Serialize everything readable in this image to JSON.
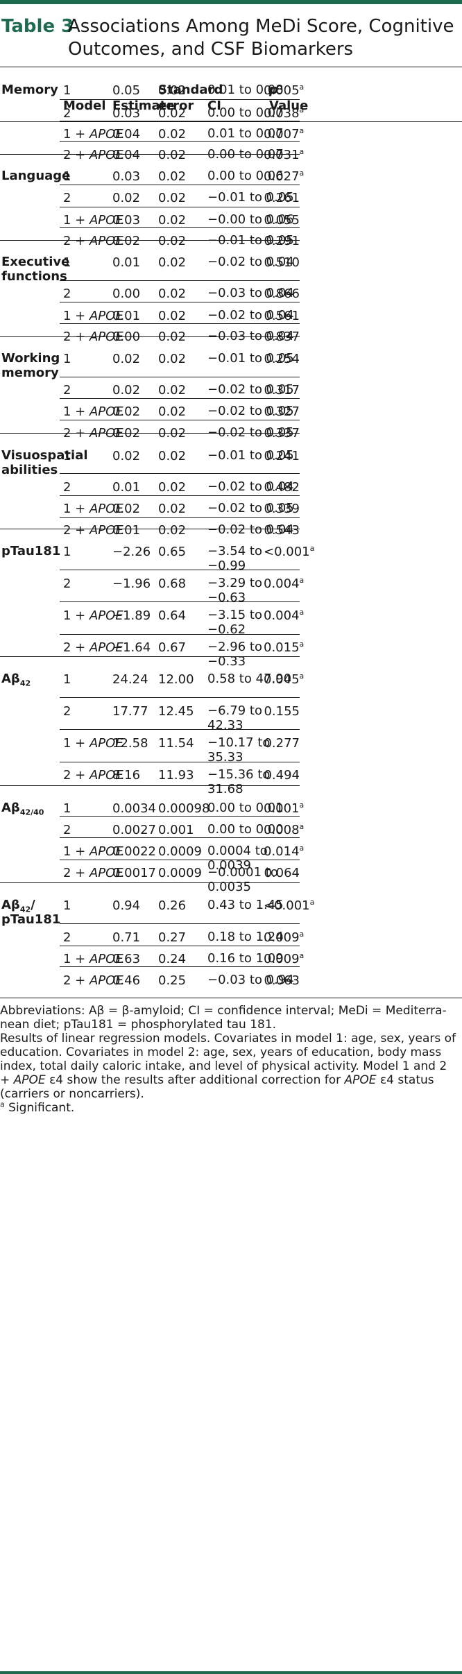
{
  "title": {
    "label": "Table 3",
    "text": "Associations Among MeDi Score, Cognitive Outcomes, and CSF Biomarkers"
  },
  "headers": {
    "model": "Model",
    "estimate": "Estimate",
    "se_line1": "Standard",
    "se_line2": "error",
    "ci": "CI",
    "p_line1": "p",
    "p_line2": "Value"
  },
  "groups": [
    {
      "name_line1": "Memory",
      "rows": [
        {
          "model": "1",
          "apoe": "",
          "est": "0.05",
          "se": "0.02",
          "ci1": "0.01 to 0.08",
          "ci2": "",
          "p": "0.005",
          "sig": "a"
        },
        {
          "model": "2",
          "apoe": "",
          "est": "0.03",
          "se": "0.02",
          "ci1": "0.00 to 0.07",
          "ci2": "",
          "p": "0.038",
          "sig": "a"
        },
        {
          "model": "1 + ",
          "apoe": "APOE",
          "est": "0.04",
          "se": "0.02",
          "ci1": "0.01 to 0.07",
          "ci2": "",
          "p": "0.007",
          "sig": "a"
        },
        {
          "model": "2 + ",
          "apoe": "APOE",
          "est": "0.04",
          "se": "0.02",
          "ci1": "0.00 to 0.07",
          "ci2": "",
          "p": "0.031",
          "sig": "a"
        }
      ]
    },
    {
      "name_line1": "Language",
      "rows": [
        {
          "model": "1",
          "apoe": "",
          "est": "0.03",
          "se": "0.02",
          "ci1": "0.00 to 0.06",
          "ci2": "",
          "p": "0.027",
          "sig": "a"
        },
        {
          "model": "2",
          "apoe": "",
          "est": "0.02",
          "se": "0.02",
          "ci1": "−0.01 to 0.05",
          "ci2": "",
          "p": "0.261",
          "sig": ""
        },
        {
          "model": "1 + ",
          "apoe": "APOE",
          "est": "0.03",
          "se": "0.02",
          "ci1": "−0.00 to 0.06",
          "ci2": "",
          "p": "0.055",
          "sig": ""
        },
        {
          "model": "2 + ",
          "apoe": "APOE",
          "est": "0.02",
          "se": "0.02",
          "ci1": "−0.01 to 0.05",
          "ci2": "",
          "p": "0.291",
          "sig": ""
        }
      ]
    },
    {
      "name_line1": "Executive",
      "name_line2": "functions",
      "rows": [
        {
          "model": "1",
          "apoe": "",
          "est": "0.01",
          "se": "0.02",
          "ci1": "−0.02 to 0.04",
          "ci2": "",
          "p": "0.510",
          "sig": ""
        },
        {
          "model": "2",
          "apoe": "",
          "est": "0.00",
          "se": "0.02",
          "ci1": "−0.03 to 0.04",
          "ci2": "",
          "p": "0.866",
          "sig": ""
        },
        {
          "model": "1 + ",
          "apoe": "APOE",
          "est": "0.01",
          "se": "0.02",
          "ci1": "−0.02 to 0.04",
          "ci2": "",
          "p": "0.561",
          "sig": ""
        },
        {
          "model": "2 + ",
          "apoe": "APOE",
          "est": "0.00",
          "se": "0.02",
          "ci1": "−0.03 to 0.04",
          "ci2": "",
          "p": "0.837",
          "sig": ""
        }
      ]
    },
    {
      "name_line1": "Working",
      "name_line2": "memory",
      "rows": [
        {
          "model": "1",
          "apoe": "",
          "est": "0.02",
          "se": "0.02",
          "ci1": "−0.01 to 0.05",
          "ci2": "",
          "p": "0.254",
          "sig": ""
        },
        {
          "model": "2",
          "apoe": "",
          "est": "0.02",
          "se": "0.02",
          "ci1": "−0.02 to 0.05",
          "ci2": "",
          "p": "0.317",
          "sig": ""
        },
        {
          "model": "1 + ",
          "apoe": "APOE",
          "est": "0.02",
          "se": "0.02",
          "ci1": "−0.02 to 0.05",
          "ci2": "",
          "p": "0.327",
          "sig": ""
        },
        {
          "model": "2 + ",
          "apoe": "APOE",
          "est": "0.02",
          "se": "0.02",
          "ci1": "−0.02 to 0.05",
          "ci2": "",
          "p": "0.337",
          "sig": ""
        }
      ]
    },
    {
      "name_line1": "Visuospatial",
      "name_line2": "abilities",
      "rows": [
        {
          "model": "1",
          "apoe": "",
          "est": "0.02",
          "se": "0.02",
          "ci1": "−0.01 to 0.05",
          "ci2": "",
          "p": "0.241",
          "sig": ""
        },
        {
          "model": "2",
          "apoe": "",
          "est": "0.01",
          "se": "0.02",
          "ci1": "−0.02 to 0.04",
          "ci2": "",
          "p": "0.482",
          "sig": ""
        },
        {
          "model": "1 + ",
          "apoe": "APOE",
          "est": "0.02",
          "se": "0.02",
          "ci1": "−0.02 to 0.05",
          "ci2": "",
          "p": "0.339",
          "sig": ""
        },
        {
          "model": "2 + ",
          "apoe": "APOE",
          "est": "0.01",
          "se": "0.02",
          "ci1": "−0.02 to 0.04",
          "ci2": "",
          "p": "0.543",
          "sig": ""
        }
      ]
    },
    {
      "name_line1": "pTau181",
      "rows": [
        {
          "model": "1",
          "apoe": "",
          "est": "−2.26",
          "se": "0.65",
          "ci1": "−3.54 to",
          "ci2": "−0.99",
          "p": "<0.001",
          "sig": "a"
        },
        {
          "model": "2",
          "apoe": "",
          "est": "−1.96",
          "se": "0.68",
          "ci1": "−3.29 to",
          "ci2": "−0.63",
          "p": "0.004",
          "sig": "a"
        },
        {
          "model": "1 + ",
          "apoe": "APOE",
          "est": "−1.89",
          "se": "0.64",
          "ci1": "−3.15 to",
          "ci2": "−0.62",
          "p": "0.004",
          "sig": "a"
        },
        {
          "model": "2 + ",
          "apoe": "APOE",
          "est": "−1.64",
          "se": "0.67",
          "ci1": "−2.96 to",
          "ci2": "−0.33",
          "p": "0.015",
          "sig": "a"
        }
      ]
    },
    {
      "name_line1": "Aβ",
      "name_sub": "42",
      "rows": [
        {
          "model": "1",
          "apoe": "",
          "est": "24.24",
          "se": "12.00",
          "ci1": "0.58 to 47.90",
          "ci2": "",
          "p": "0.045",
          "sig": "a"
        },
        {
          "model": "2",
          "apoe": "",
          "est": "17.77",
          "se": "12.45",
          "ci1": "−6.79 to",
          "ci2": "42.33",
          "p": "0.155",
          "sig": ""
        },
        {
          "model": "1 + ",
          "apoe": "APOE",
          "est": "12.58",
          "se": "11.54",
          "ci1": "−10.17 to",
          "ci2": "35.33",
          "p": "0.277",
          "sig": ""
        },
        {
          "model": "2 + ",
          "apoe": "APOE",
          "est": "8.16",
          "se": "11.93",
          "ci1": "−15.36 to",
          "ci2": "31.68",
          "p": "0.494",
          "sig": ""
        }
      ]
    },
    {
      "name_line1": "Aβ",
      "name_sub": "42/40",
      "rows": [
        {
          "model": "1",
          "apoe": "",
          "est": "0.0034",
          "se": "0.00098",
          "ci1": "0.00 to 0.01",
          "ci2": "",
          "p": "0.001",
          "sig": "a"
        },
        {
          "model": "2",
          "apoe": "",
          "est": "0.0027",
          "se": "0.001",
          "ci1": "0.00 to 0.00",
          "ci2": "",
          "p": "0.008",
          "sig": "a"
        },
        {
          "model": "1 + ",
          "apoe": "APOE",
          "est": "0.0022",
          "se": "0.0009",
          "ci1": "0.0004 to",
          "ci2": "0.0039",
          "p": "0.014",
          "sig": "a"
        },
        {
          "model": "2 + ",
          "apoe": "APOE",
          "est": "0.0017",
          "se": "0.0009",
          "ci1": "−0.0001 to",
          "ci2": "0.0035",
          "p": "0.064",
          "sig": ""
        }
      ]
    },
    {
      "name_line1": "Aβ",
      "name_sub": "42",
      "name_after": "/",
      "name_line2": "pTau181",
      "rows": [
        {
          "model": "1",
          "apoe": "",
          "est": "0.94",
          "se": "0.26",
          "ci1": "0.43 to 1.45",
          "ci2": "",
          "p": "<0.001",
          "sig": "a"
        },
        {
          "model": "2",
          "apoe": "",
          "est": "0.71",
          "se": "0.27",
          "ci1": "0.18 to 1.24",
          "ci2": "",
          "p": "0.009",
          "sig": "a"
        },
        {
          "model": "1 + ",
          "apoe": "APOE",
          "est": "0.63",
          "se": "0.24",
          "ci1": "0.16 to 1.09",
          "ci2": "",
          "p": "0.009",
          "sig": "a"
        },
        {
          "model": "2 + ",
          "apoe": "APOE",
          "est": "0.46",
          "se": "0.25",
          "ci1": "−0.03 to 0.94",
          "ci2": "",
          "p": "0.063",
          "sig": ""
        }
      ]
    }
  ],
  "footnotes": {
    "abbrev_line1": "Abbreviations: Aβ = β-amyloid; CI = confidence interval; MeDi = Mediterra-",
    "abbrev_line2": "nean diet; pTau181 = phosphorylated tau 181.",
    "results_line1": "Results of linear regression models. Covariates in model 1: age, sex, years of",
    "results_line2": "education. Covariates in model 2: age, sex, years of education, body mass",
    "results_line3": "index, total daily caloric intake, and level of physical activity. Model 1 and 2",
    "results_line4_a": "+ ",
    "results_line4_apoe": "APOE",
    "results_line4_b": " ε4 show the results after additional correction for ",
    "results_line4_apoe2": "APOE",
    "results_line4_c": " ε4 status",
    "results_line5": "(carriers or noncarriers).",
    "sig_mark": "a",
    "sig_text": " Significant."
  },
  "colors": {
    "accent": "#1f6b4f",
    "text": "#1a1a1a"
  }
}
